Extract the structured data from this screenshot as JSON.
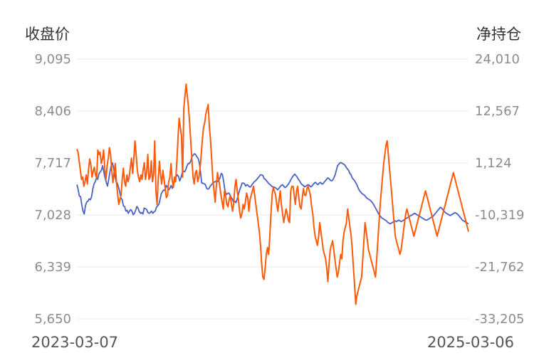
{
  "chart_data": {
    "type": "line",
    "y_left_title": "收盘价",
    "y_right_title": "净持仓",
    "y_left_ticks": [
      "9,095",
      "8,406",
      "7,717",
      "7,028",
      "6,339",
      "5,650"
    ],
    "y_right_ticks": [
      "24,010",
      "12,567",
      "1,124",
      "-10,319",
      "-21,762",
      "-33,205"
    ],
    "y_left_range": [
      5650,
      9095
    ],
    "y_right_range": [
      -33205,
      24010
    ],
    "x_start_label": "2023-03-07",
    "x_end_label": "2025-03-06",
    "grid": true,
    "series": [
      {
        "axis": "left",
        "color": "#4a62c6",
        "values": [
          7430,
          7370,
          7280,
          7270,
          7160,
          7080,
          7040,
          7150,
          7200,
          7210,
          7240,
          7230,
          7270,
          7370,
          7440,
          7470,
          7520,
          7500,
          7570,
          7600,
          7620,
          7680,
          7600,
          7520,
          7460,
          7410,
          7500,
          7600,
          7680,
          7720,
          7650,
          7550,
          7470,
          7450,
          7400,
          7330,
          7250,
          7230,
          7150,
          7140,
          7080,
          7090,
          7050,
          7080,
          7100,
          7080,
          7030,
          7050,
          7090,
          7140,
          7120,
          7070,
          7050,
          7060,
          7040,
          7120,
          7110,
          7100,
          7060,
          7050,
          7060,
          7080,
          7050,
          7070,
          7080,
          7130,
          7150,
          7170,
          7240,
          7310,
          7340,
          7360,
          7350,
          7420,
          7400,
          7360,
          7380,
          7420,
          7380,
          7430,
          7490,
          7530,
          7560,
          7540,
          7480,
          7520,
          7580,
          7610,
          7600,
          7630,
          7680,
          7710,
          7710,
          7740,
          7800,
          7820,
          7840,
          7830,
          7800,
          7780,
          7720,
          7600,
          7450,
          7450,
          7440,
          7430,
          7380,
          7370,
          7380,
          7410,
          7430,
          7450,
          7460,
          7470,
          7480,
          7470,
          7490,
          7520,
          7580,
          7560,
          7460,
          7350,
          7300,
          7310,
          7320,
          7300,
          7260,
          7240,
          7200,
          7210,
          7190,
          7240,
          7300,
          7360,
          7400,
          7450,
          7450,
          7440,
          7410,
          7430,
          7420,
          7400,
          7400,
          7430,
          7450,
          7470,
          7480,
          7500,
          7520,
          7540,
          7560,
          7560,
          7550,
          7510,
          7500,
          7480,
          7460,
          7440,
          7430,
          7410,
          7400,
          7400,
          7390,
          7380,
          7360,
          7380,
          7400,
          7420,
          7430,
          7410,
          7390,
          7400,
          7420,
          7440,
          7470,
          7500,
          7530,
          7550,
          7570,
          7550,
          7530,
          7500,
          7480,
          7450,
          7430,
          7420,
          7400,
          7410,
          7420,
          7430,
          7420,
          7400,
          7410,
          7430,
          7450,
          7460,
          7440,
          7430,
          7450,
          7460,
          7440,
          7440,
          7460,
          7480,
          7500,
          7520,
          7510,
          7490,
          7480,
          7490,
          7520,
          7560,
          7620,
          7680,
          7700,
          7720,
          7720,
          7710,
          7700,
          7690,
          7660,
          7640,
          7620,
          7580,
          7560,
          7520,
          7500,
          7480,
          7450,
          7420,
          7380,
          7350,
          7330,
          7310,
          7300,
          7290,
          7270,
          7250,
          7240,
          7230,
          7220,
          7200,
          7180,
          7150,
          7120,
          7090,
          7060,
          7030,
          7010,
          6990,
          6980,
          6970,
          6960,
          6950,
          6930,
          6920,
          6910,
          6920,
          6930,
          6940,
          6950,
          6940,
          6950,
          6960,
          6950,
          6940,
          6950,
          6960,
          6970,
          6980,
          6990,
          7000,
          7010,
          7020,
          7030,
          7040,
          7050,
          7040,
          7030,
          7020,
          7010,
          7000,
          6990,
          6980,
          6970,
          6960,
          6960,
          6970,
          6980,
          6990,
          7000,
          7010,
          7030,
          7050,
          7070,
          7090,
          7110,
          7130,
          7120,
          7100,
          7080,
          7060,
          7050,
          7040,
          7030,
          7020,
          7030,
          7040,
          7050,
          7060,
          7050,
          7040,
          7020,
          7000,
          6980,
          6960,
          6950,
          6940,
          6930,
          6920,
          6910
        ]
      },
      {
        "axis": "right",
        "color": "#ff5a0a",
        "values": [
          4200,
          3500,
          1400,
          -500,
          -2500,
          -2000,
          -4000,
          -3000,
          -1500,
          -3500,
          -400,
          2000,
          800,
          -2000,
          -800,
          200,
          -1500,
          -2200,
          4000,
          3000,
          3500,
          1000,
          2000,
          4000,
          -200,
          -2500,
          500,
          2200,
          4500,
          3000,
          -500,
          -3200,
          -1000,
          1000,
          -3000,
          -5500,
          -8000,
          -7000,
          -6000,
          -2500,
          0,
          -3000,
          -4000,
          -1500,
          -3000,
          -2000,
          200,
          2200,
          -1200,
          2200,
          6000,
          3000,
          -500,
          -2000,
          -3000,
          -1500,
          -2500,
          -400,
          1200,
          -2500,
          -1000,
          3000,
          -2500,
          -2000,
          1600,
          -3000,
          -1500,
          6000,
          -5000,
          -8000,
          -2500,
          1500,
          -1500,
          -3500,
          -500,
          -2500,
          -4500,
          -6500,
          -6000,
          -3000,
          -2000,
          1000,
          -2500,
          -4200,
          -2000,
          -3000,
          1500,
          6500,
          11000,
          9000,
          7000,
          -2000,
          13000,
          16000,
          18500,
          16000,
          13500,
          10000,
          6000,
          1500,
          -2000,
          -3500,
          -1000,
          -500,
          -3000,
          -2000,
          0,
          3000,
          6500,
          9000,
          10000,
          12000,
          13000,
          14000,
          9000,
          6000,
          2000,
          -2500,
          -5000,
          -7500,
          -4000,
          -1000,
          -2500,
          -4000,
          -6000,
          -7500,
          -9000,
          -5000,
          -6000,
          -8000,
          -8500,
          -7000,
          -6000,
          -8000,
          -9500,
          -7500,
          -4000,
          -2500,
          -5000,
          -7000,
          -9500,
          -11000,
          -10000,
          -8000,
          -9000,
          -7500,
          -5500,
          -6500,
          -9500,
          -7000,
          -6000,
          -5000,
          -4000,
          -6000,
          -8000,
          -10000,
          -12000,
          -14000,
          -17000,
          -21000,
          -24000,
          -24500,
          -22000,
          -19000,
          -17500,
          -19000,
          -15000,
          -10000,
          -6000,
          -4200,
          -5000,
          -6000,
          -8000,
          -9500,
          -7000,
          -5000,
          -8000,
          -10000,
          -12000,
          -10500,
          -9000,
          -10000,
          -11500,
          -12000,
          -5000,
          -4000,
          -4000,
          -6000,
          -8000,
          -5000,
          -4000,
          -6500,
          -8500,
          -9000,
          -6500,
          -4500,
          -6000,
          -6000,
          -4500,
          -4000,
          -5000,
          -6000,
          -8500,
          -10000,
          -13000,
          -15000,
          -16000,
          -17000,
          -15000,
          -12000,
          -14000,
          -16000,
          -18000,
          -19000,
          -20000,
          -22000,
          -25000,
          -21000,
          -18000,
          -17000,
          -16000,
          -18000,
          -20000,
          -22000,
          -24000,
          -23000,
          -21000,
          -19000,
          -20000,
          -16000,
          -14000,
          -13000,
          -12000,
          -9000,
          -11000,
          -13000,
          -15000,
          -18000,
          -22000,
          -26000,
          -30000,
          -28000,
          -27000,
          -26000,
          -25000,
          -24000,
          -20000,
          -16000,
          -12000,
          -14000,
          -16000,
          -18000,
          -19000,
          -20000,
          -21000,
          -22000,
          -23000,
          -24000,
          -20000,
          -16000,
          -12000,
          -8000,
          -5000,
          -2000,
          1000,
          3000,
          5000,
          6000,
          3000,
          0,
          -3000,
          -6000,
          -9000,
          -12000,
          -15000,
          -16000,
          -17000,
          -18000,
          -19000,
          -18000,
          -16000,
          -14000,
          -12000,
          -10000,
          -9000,
          -10000,
          -11000,
          -12000,
          -13000,
          -14000,
          -15000,
          -14000,
          -13000,
          -12000,
          -11000,
          -10000,
          -9000,
          -8000,
          -7000,
          -6000,
          -5000,
          -6000,
          -7000,
          -8000,
          -9000,
          -10000,
          -11000,
          -12000,
          -13000,
          -14000,
          -15000,
          -14000,
          -13000,
          -12000,
          -11000,
          -10000,
          -9000,
          -8000,
          -7000,
          -6000,
          -5000,
          -4000,
          -3000,
          -2000,
          -1000,
          -2000,
          -3000,
          -4000,
          -5000,
          -6000,
          -7000,
          -8000,
          -9000,
          -10000,
          -11000,
          -12000,
          -13000,
          -14000
        ]
      }
    ]
  }
}
